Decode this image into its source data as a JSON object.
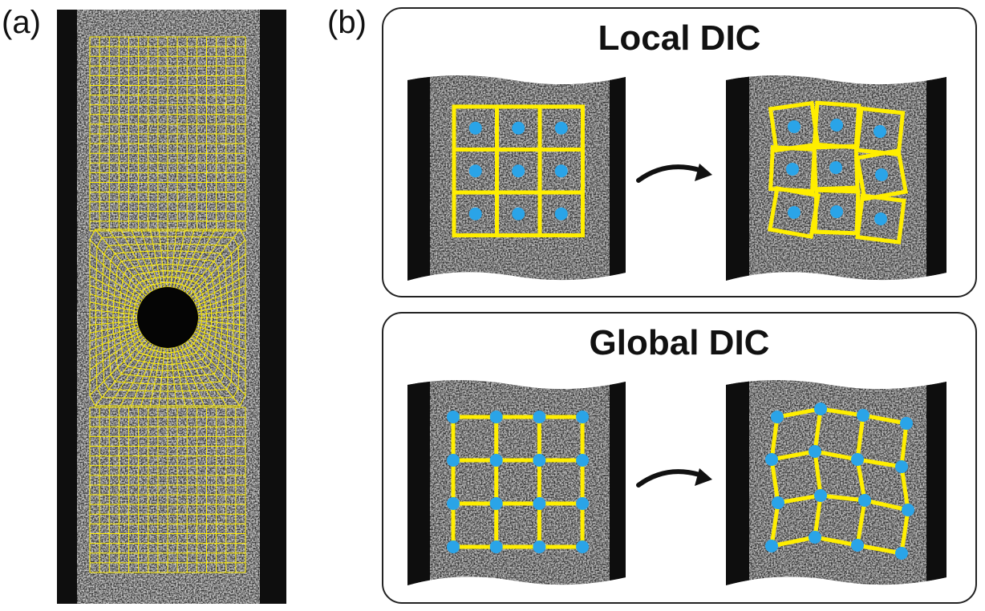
{
  "figure": {
    "panel_a_label": "(a)",
    "panel_b_label": "(b)",
    "local_title": "Local DIC",
    "global_title": "Global DIC"
  },
  "colors": {
    "mesh": "#ffee00",
    "node": "#2aa4e8",
    "arrow": "#111111",
    "specimen_edge": "#111111",
    "box_border": "#222222"
  }
}
